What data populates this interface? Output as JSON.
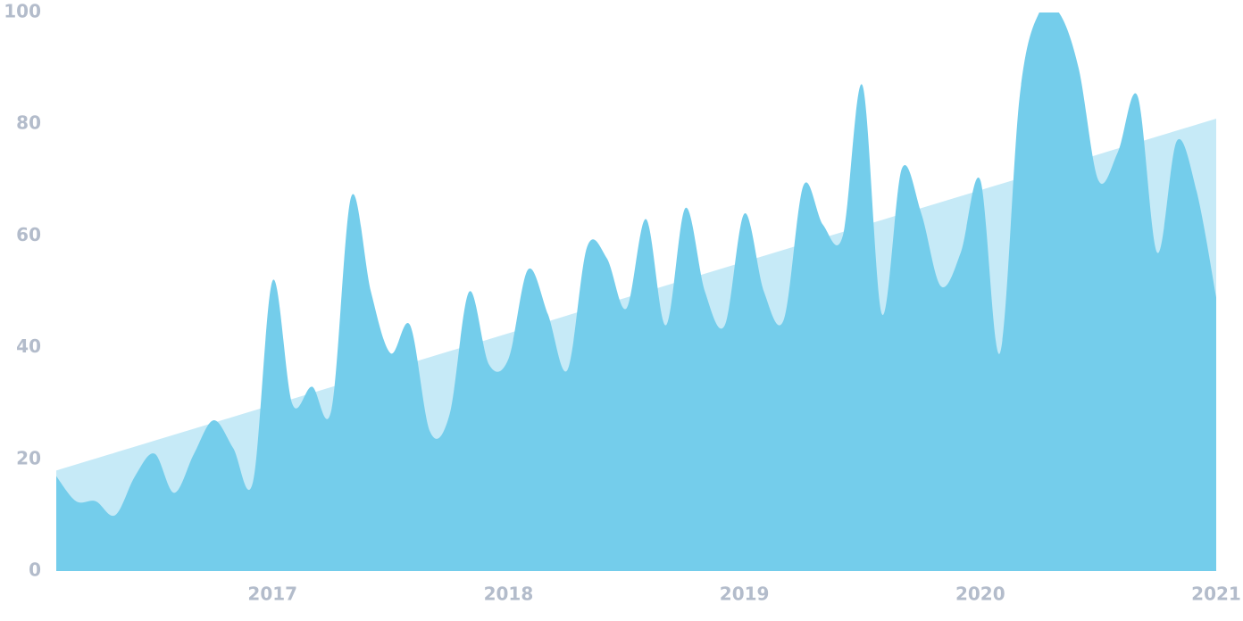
{
  "chart_data": {
    "type": "area",
    "x": [
      2016.083,
      2016.167,
      2016.25,
      2016.333,
      2016.417,
      2016.5,
      2016.583,
      2016.667,
      2016.75,
      2016.833,
      2016.917,
      2017,
      2017.083,
      2017.167,
      2017.25,
      2017.333,
      2017.417,
      2017.5,
      2017.583,
      2017.667,
      2017.75,
      2017.833,
      2017.917,
      2018,
      2018.083,
      2018.167,
      2018.25,
      2018.333,
      2018.417,
      2018.5,
      2018.583,
      2018.667,
      2018.75,
      2018.833,
      2018.917,
      2019,
      2019.083,
      2019.167,
      2019.25,
      2019.333,
      2019.417,
      2019.5,
      2019.583,
      2019.667,
      2019.75,
      2019.833,
      2019.917,
      2020,
      2020.083,
      2020.167,
      2020.25,
      2020.333,
      2020.417,
      2020.5,
      2020.583,
      2020.667,
      2020.75,
      2020.833,
      2020.917,
      2021
    ],
    "series": [
      {
        "color": "#c6eaf7",
        "x": [
          2016.083,
          2021
        ],
        "values": [
          18,
          81
        ]
      },
      {
        "color": "#74cdeb",
        "values": [
          17,
          12.5,
          12.5,
          10,
          17,
          21,
          14,
          21,
          27,
          22,
          16,
          52,
          30,
          33,
          29,
          67,
          50,
          39,
          44,
          25,
          28,
          50,
          37,
          38,
          54,
          46,
          36,
          58,
          56,
          47,
          63,
          44,
          65,
          50,
          44,
          64,
          50,
          45,
          69,
          62,
          60,
          87,
          46,
          72,
          64,
          51,
          57,
          70,
          39,
          85,
          100,
          100,
          90,
          70,
          75,
          85,
          57,
          77,
          68,
          49
        ]
      }
    ],
    "xlim": [
      2016.083,
      2021
    ],
    "xticks": [
      2017,
      2018,
      2019,
      2020,
      2021
    ],
    "ylim": [
      0,
      100
    ],
    "yticks": [
      0,
      20,
      40,
      60,
      80,
      100
    ]
  }
}
